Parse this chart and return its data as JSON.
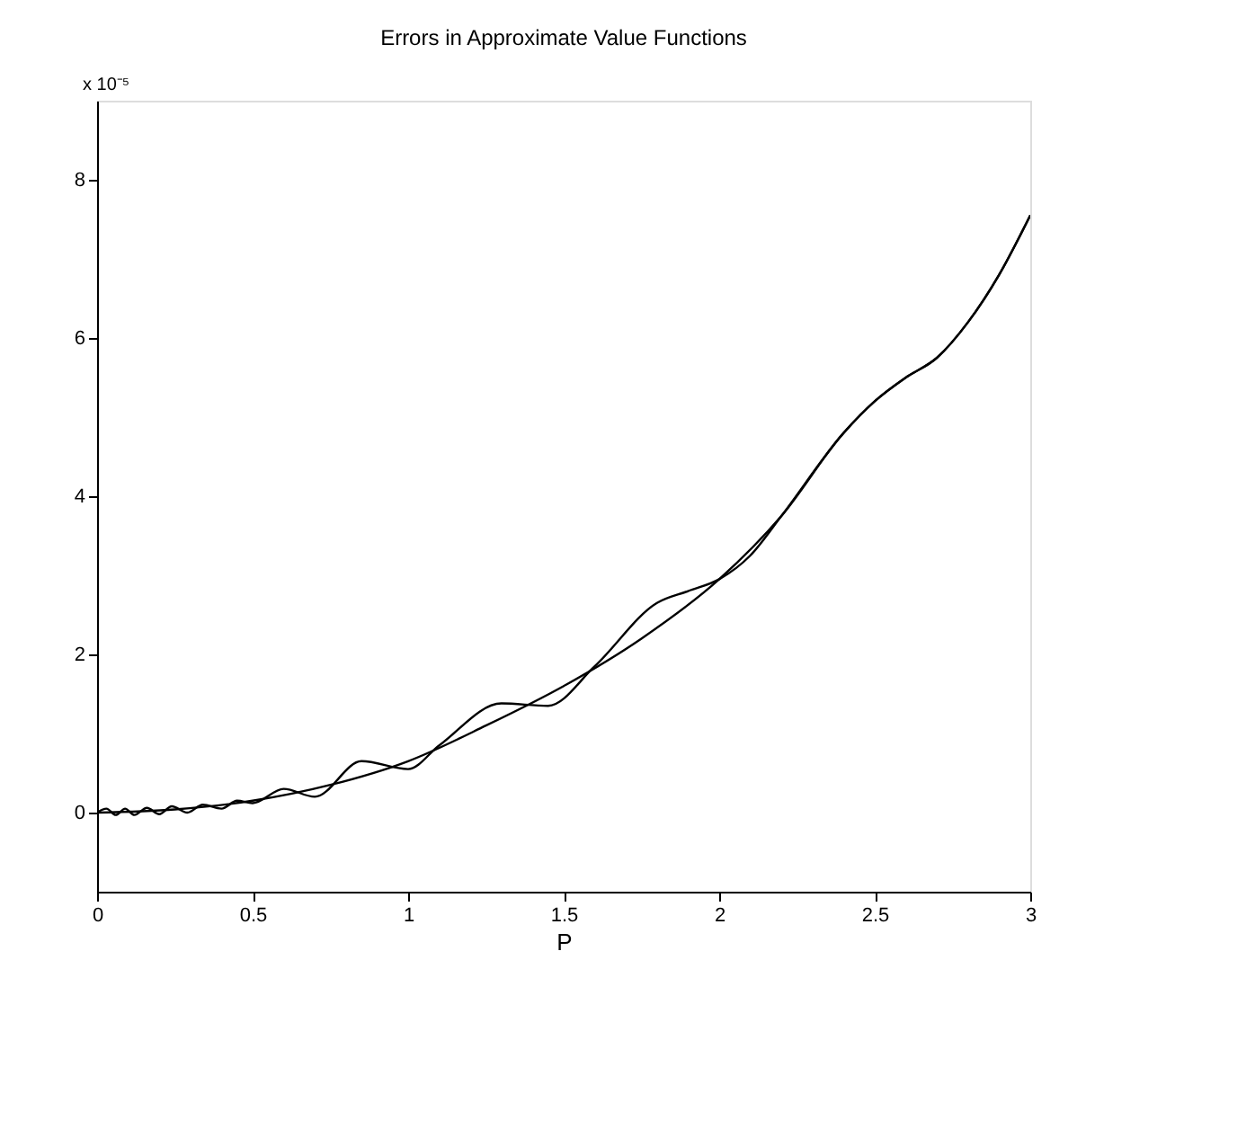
{
  "chart_data": {
    "type": "line",
    "title": "Errors in Approximate Value Functions",
    "xlabel": "P",
    "annotations": [
      "x 10⁻⁵"
    ],
    "xlim": [
      0,
      3
    ],
    "xticks": [
      0,
      0.5,
      1,
      1.5,
      2,
      2.5,
      3
    ],
    "ylim": [
      -1,
      9
    ],
    "yticks": [
      0,
      2,
      4,
      6,
      8
    ],
    "grid": false,
    "marker": "none",
    "line_style": "solid",
    "series": [
      {
        "color": "#000000",
        "x": [
          0,
          0.25,
          0.5,
          0.75,
          1.0,
          1.25,
          1.5,
          1.75,
          2.0,
          2.2,
          2.4,
          2.5,
          2.6,
          2.7,
          2.8,
          2.9,
          3.0
        ],
        "values": [
          0,
          0.04,
          0.15,
          0.35,
          0.65,
          1.1,
          1.6,
          2.2,
          2.95,
          3.75,
          4.8,
          5.2,
          5.5,
          5.75,
          6.2,
          6.8,
          7.55
        ]
      },
      {
        "color": "#000000",
        "x": [
          0,
          0.03,
          0.06,
          0.09,
          0.12,
          0.16,
          0.2,
          0.24,
          0.29,
          0.34,
          0.4,
          0.45,
          0.5,
          0.6,
          0.7,
          0.85,
          1.0,
          1.1,
          1.3,
          1.45,
          1.6,
          1.8,
          1.9,
          2.0,
          2.1,
          2.2,
          2.4,
          2.5,
          2.6,
          2.7,
          2.8,
          2.9,
          3.0
        ],
        "values": [
          0,
          0.05,
          -0.03,
          0.05,
          -0.03,
          0.06,
          -0.02,
          0.08,
          0.0,
          0.1,
          0.05,
          0.15,
          0.12,
          0.3,
          0.2,
          0.65,
          0.55,
          0.85,
          1.38,
          1.35,
          1.85,
          2.65,
          2.8,
          2.95,
          3.25,
          3.75,
          4.8,
          5.2,
          5.5,
          5.75,
          6.2,
          6.8,
          7.55
        ]
      }
    ]
  }
}
